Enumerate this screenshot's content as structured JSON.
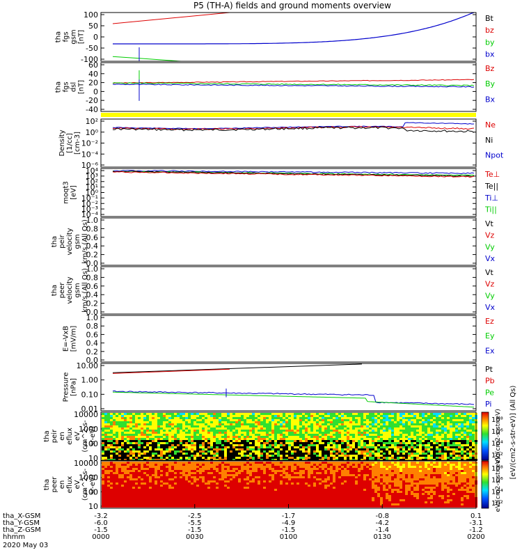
{
  "title": "P5 (TH-A) fields and ground moments overview",
  "footer": {
    "date": "2020 May 03",
    "rows": [
      {
        "label": "tha_X-GSM",
        "values": [
          "-3.2",
          "-2.5",
          "-1.7",
          "-0.8",
          "0.1"
        ]
      },
      {
        "label": "tha_Y-GSM",
        "values": [
          "-6.0",
          "-5.5",
          "-4.9",
          "-4.2",
          "-3.1"
        ]
      },
      {
        "label": "tha_Z-GSM",
        "values": [
          "-1.5",
          "-1.5",
          "-1.5",
          "-1.4",
          "-1.2"
        ]
      },
      {
        "label": "hhmm",
        "values": [
          "0000",
          "0030",
          "0100",
          "0130",
          "0200"
        ]
      }
    ]
  },
  "colorbar_label": "[eV/(cm2-s-str-eV)] (All Qs)",
  "colorbar_label_inner": "eV/(cm2-s-str-eV)",
  "colorbar_ticks": [
    "10⁸",
    "10⁶",
    "10⁴",
    "10²"
  ],
  "colors": {
    "black": "#000000",
    "red": "#dd0000",
    "green": "#00cc00",
    "blue": "#0000cc",
    "yellow": "#ffff00"
  },
  "chart_data": [
    {
      "id": "fgs_gsm",
      "type": "line",
      "ylabel_lines": [
        "tha",
        "fgs",
        "gsm",
        "[nT]"
      ],
      "yticks": [
        "100",
        "50",
        "0",
        "-50",
        "-100"
      ],
      "ylim": [
        -100,
        110
      ],
      "legend": [
        {
          "name": "Bt",
          "color": "#000000"
        },
        {
          "name": "bz",
          "color": "#dd0000"
        },
        {
          "name": "by",
          "color": "#00cc00"
        },
        {
          "name": "bx",
          "color": "#0000cc"
        }
      ]
    },
    {
      "id": "fgs_dsl",
      "type": "line",
      "ylabel_lines": [
        "tha",
        "fgs",
        "dsl",
        "[nT]"
      ],
      "yticks": [
        "60",
        "40",
        "20",
        "0",
        "-20",
        "-40"
      ],
      "ylim": [
        -55,
        60
      ],
      "legend": [
        {
          "name": "Bz",
          "color": "#dd0000"
        },
        {
          "name": "By",
          "color": "#00cc00"
        },
        {
          "name": "Bx",
          "color": "#0000cc"
        }
      ]
    },
    {
      "id": "density",
      "type": "line",
      "ylabel_lines": [
        "Density",
        "[1/cc]",
        "[cm-3]"
      ],
      "yticks": [
        "10²",
        "10⁰",
        "10⁻²",
        "10⁻⁴",
        "10⁻⁶"
      ],
      "legend": [
        {
          "name": "Ne",
          "color": "#dd0000"
        },
        {
          "name": "Ni",
          "color": "#000000"
        },
        {
          "name": "Npot",
          "color": "#0000cc"
        }
      ]
    },
    {
      "id": "temperature",
      "type": "line",
      "ylabel_lines": [
        "moqt3",
        "[eV]"
      ],
      "yticks": [
        "10⁴",
        "10³",
        "10²",
        "10¹",
        "10⁰",
        "10⁻¹",
        "10⁻²",
        "10⁻³",
        "10⁻⁴"
      ],
      "legend": [
        {
          "name": "Te⊥",
          "color": "#dd0000"
        },
        {
          "name": "Te||",
          "color": "#000000"
        },
        {
          "name": "Ti⊥",
          "color": "#0000cc"
        },
        {
          "name": "Ti||",
          "color": "#00cc00"
        }
      ]
    },
    {
      "id": "peir_velocity",
      "type": "line",
      "ylabel_lines": [
        "tha",
        "peir",
        "velocity",
        "gsm",
        "km/s (All Qs)"
      ],
      "yticks": [
        "1.0",
        "0.8",
        "0.6",
        "0.4",
        "0.2",
        "0.0"
      ],
      "ylim": [
        0,
        1
      ],
      "legend": [
        {
          "name": "Vt",
          "color": "#000000"
        },
        {
          "name": "Vz",
          "color": "#dd0000"
        },
        {
          "name": "Vy",
          "color": "#00cc00"
        },
        {
          "name": "Vx",
          "color": "#0000cc"
        }
      ]
    },
    {
      "id": "peer_velocity",
      "type": "line",
      "ylabel_lines": [
        "tha",
        "peer",
        "velocity",
        "gsm",
        "km/s (All Qs)"
      ],
      "yticks": [
        "1.0",
        "0.8",
        "0.6",
        "0.4",
        "0.2",
        "0.0"
      ],
      "ylim": [
        0,
        1
      ],
      "legend": [
        {
          "name": "Vt",
          "color": "#000000"
        },
        {
          "name": "Vz",
          "color": "#dd0000"
        },
        {
          "name": "Vy",
          "color": "#00cc00"
        },
        {
          "name": "Vx",
          "color": "#0000cc"
        }
      ]
    },
    {
      "id": "e_field",
      "type": "line",
      "ylabel_lines": [
        "E=-VxB",
        "[mV/m]"
      ],
      "yticks": [
        "1.0",
        "0.8",
        "0.6",
        "0.4",
        "0.2",
        "0.0"
      ],
      "ylim": [
        0,
        1
      ],
      "legend": [
        {
          "name": "Ez",
          "color": "#dd0000"
        },
        {
          "name": "Ey",
          "color": "#00cc00"
        },
        {
          "name": "Ex",
          "color": "#0000cc"
        }
      ]
    },
    {
      "id": "pressure",
      "type": "line",
      "ylabel_lines": [
        "Pressure",
        "[nPa]"
      ],
      "yticks": [
        "10.00",
        "1.00",
        "0.10",
        "0.01"
      ],
      "legend": [
        {
          "name": "Pt",
          "color": "#000000"
        },
        {
          "name": "Pb",
          "color": "#dd0000"
        },
        {
          "name": "Pe",
          "color": "#00cc00"
        },
        {
          "name": "Pi",
          "color": "#0000cc"
        }
      ]
    },
    {
      "id": "peir_eflux",
      "type": "heatmap",
      "ylabel_lines": [
        "tha",
        "peir",
        "en",
        "eflux",
        "eV",
        "(cm^2-s-",
        "sr-eV)"
      ],
      "yticks": [
        "10000",
        "1000",
        "100",
        "10"
      ]
    },
    {
      "id": "peer_eflux",
      "type": "heatmap",
      "ylabel_lines": [
        "tha",
        "peer",
        "en",
        "eflux",
        "eV",
        "(cm^2-s-",
        "sr-eV)"
      ],
      "yticks": [
        "10000",
        "1000",
        "100",
        "10"
      ]
    }
  ]
}
